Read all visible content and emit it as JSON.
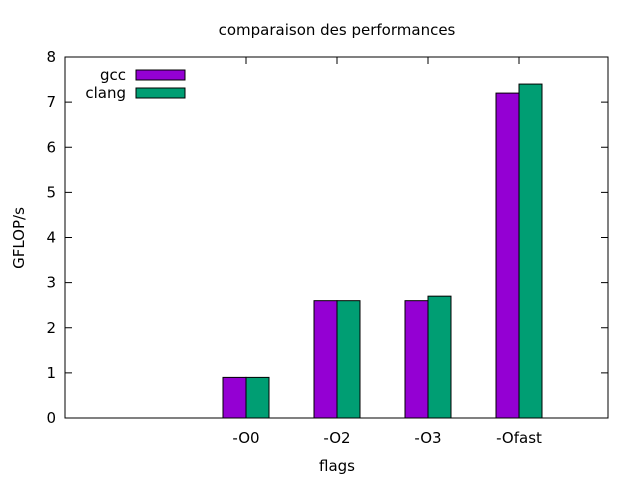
{
  "chart_data": {
    "type": "bar",
    "title": "comparaison des performances",
    "xlabel": "flags",
    "ylabel": "GFLOP/s",
    "ylim": [
      0,
      8
    ],
    "yticks": [
      0,
      1,
      2,
      3,
      4,
      5,
      6,
      7,
      8
    ],
    "categories": [
      "",
      "-O0",
      "-O2",
      "-O3",
      "-Ofast"
    ],
    "series": [
      {
        "name": "gcc",
        "color": "#9400d3",
        "values": [
          null,
          0.9,
          2.6,
          2.6,
          7.2
        ]
      },
      {
        "name": "clang",
        "color": "#009e73",
        "values": [
          null,
          0.9,
          2.6,
          2.7,
          7.4
        ]
      }
    ],
    "legend": "top-left",
    "grid": false
  }
}
